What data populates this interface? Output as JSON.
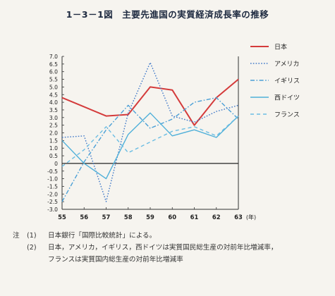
{
  "title": "1－3－1図　主要先進国の実質経済成長率の推移",
  "chart_data": {
    "type": "line",
    "title": "1－3－1図　主要先進国の実質経済成長率の推移",
    "x": [
      "55",
      "56",
      "57",
      "58",
      "59",
      "60",
      "61",
      "62",
      "63"
    ],
    "x_unit": "(年)",
    "ylim": [
      -3.0,
      7.0
    ],
    "yticks": [
      "7.0",
      "6.5",
      "6.0",
      "5.5",
      "5.0",
      "4.5",
      "4.0",
      "3.5",
      "3.0",
      "2.5",
      "2.0",
      "1.5",
      "1.0",
      "0.5",
      "0",
      "-0.5",
      "-1.0",
      "-1.5",
      "-2.0",
      "-2.5",
      "-3.0"
    ],
    "grid": false,
    "legend_position": "right",
    "series": [
      {
        "name": "日本",
        "color": "#d43b3b",
        "style": "solid",
        "values": [
          4.3,
          3.7,
          3.1,
          3.2,
          5.0,
          4.8,
          2.5,
          4.3,
          5.5
        ]
      },
      {
        "name": "アメリカ",
        "color": "#3f78c8",
        "style": "dotted",
        "values": [
          1.7,
          1.8,
          -2.5,
          3.3,
          6.6,
          3.1,
          2.7,
          3.4,
          3.8
        ]
      },
      {
        "name": "イギリス",
        "color": "#4a9fd6",
        "style": "dashdot",
        "values": [
          -2.5,
          0.1,
          2.2,
          3.8,
          2.3,
          2.9,
          4.0,
          4.3,
          2.9
        ]
      },
      {
        "name": "西ドイツ",
        "color": "#4fb0d9",
        "style": "solid",
        "values": [
          1.5,
          0.0,
          -1.0,
          1.9,
          3.3,
          1.8,
          2.2,
          1.7,
          3.1
        ]
      },
      {
        "name": "フランス",
        "color": "#6bbde3",
        "style": "dashed",
        "values": [
          -0.2,
          0.9,
          2.4,
          0.7,
          1.4,
          2.1,
          2.4,
          1.8,
          3.1
        ]
      }
    ]
  },
  "notes": [
    {
      "prefix": "注",
      "num": "(1)",
      "text": "日本銀行「国際比較統計」による。"
    },
    {
      "prefix": "",
      "num": "(2)",
      "text": "日本，アメリカ，イギリス，西ドイツは実質国民総生産の対前年比増減率，"
    },
    {
      "prefix": "",
      "num": "",
      "text": "フランスは実質国内総生産の対前年比増減率"
    }
  ]
}
